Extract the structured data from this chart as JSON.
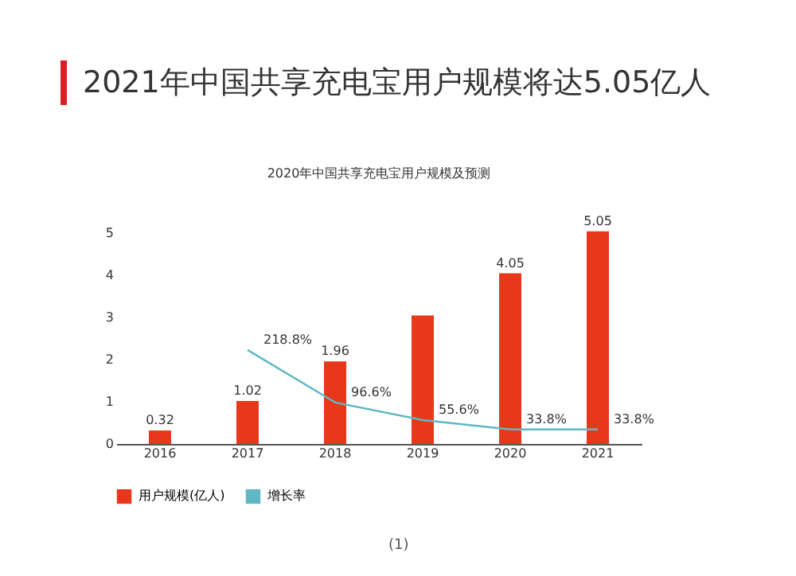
{
  "chart_data": {
    "type": "bar",
    "title": "2021年中国共享充电宝用户规模将达5.05亿人",
    "subtitle": "2020年中国共享充电宝用户规模及预测",
    "categories": [
      "2016",
      "2017",
      "2018",
      "2019",
      "2020",
      "2021"
    ],
    "series": [
      {
        "name": "用户规模(亿人)",
        "color": "#e8381c",
        "values": [
          0.32,
          1.02,
          1.96,
          3.05,
          4.05,
          5.05
        ],
        "value_labels": [
          "0.32",
          "1.02",
          "1.96",
          null,
          "4.05",
          "5.05"
        ]
      },
      {
        "name": "增长率",
        "type": "line",
        "axis": "y2",
        "color": "#5fb8c4",
        "values": [
          null,
          218.8,
          96.6,
          55.6,
          33.8,
          33.8
        ],
        "value_labels": [
          null,
          "218.8%",
          "96.6%",
          "55.6%",
          "33.8%",
          "33.8%"
        ]
      }
    ],
    "ylim": [
      0,
      5.1
    ],
    "yticks": [
      0,
      1,
      2,
      3,
      4,
      5
    ],
    "y2lim": [
      0,
      500
    ],
    "grid": false,
    "legend": "bottom",
    "annotations": [
      "(1)"
    ]
  }
}
